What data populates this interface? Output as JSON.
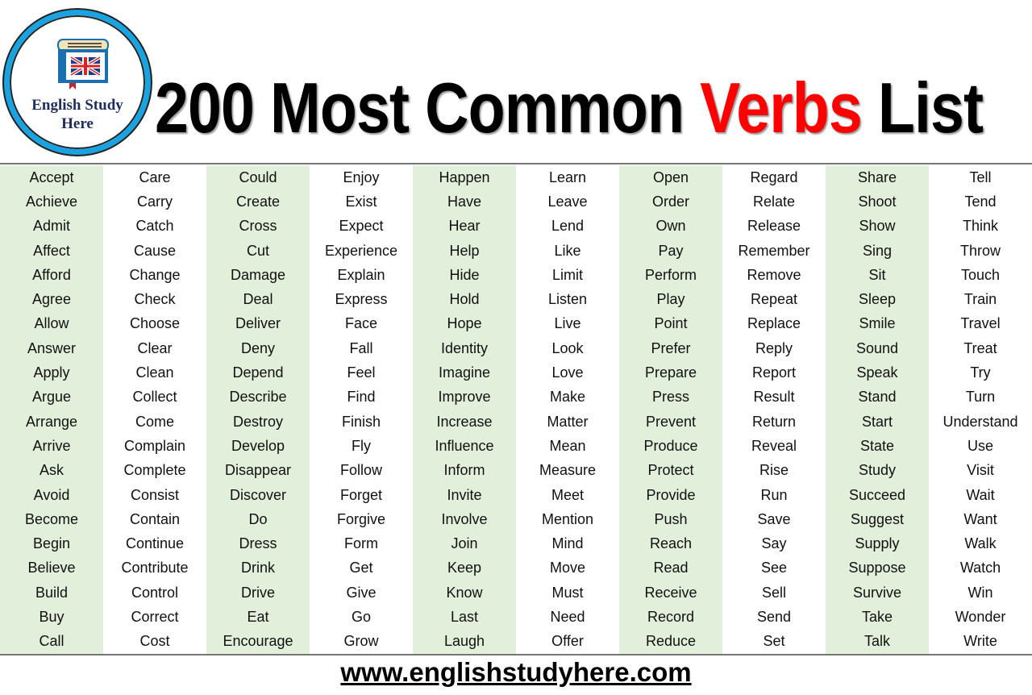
{
  "logo": {
    "text_line1": "English Study",
    "text_line2": "Here"
  },
  "title": {
    "part1": "200 Most Common ",
    "highlight": "Verbs",
    "part2": " List",
    "highlight_color": "#ff0000"
  },
  "colors": {
    "stripe": "#e2efda",
    "logo_ring": "#1aa3e0"
  },
  "columns": [
    [
      "Accept",
      "Achieve",
      "Admit",
      "Affect",
      "Afford",
      "Agree",
      "Allow",
      "Answer",
      "Apply",
      "Argue",
      "Arrange",
      "Arrive",
      "Ask",
      "Avoid",
      "Become",
      "Begin",
      "Believe",
      "Build",
      "Buy",
      "Call"
    ],
    [
      "Care",
      "Carry",
      "Catch",
      "Cause",
      "Change",
      "Check",
      "Choose",
      "Clear",
      "Clean",
      "Collect",
      "Come",
      "Complain",
      "Complete",
      "Consist",
      "Contain",
      "Continue",
      "Contribute",
      "Control",
      "Correct",
      "Cost"
    ],
    [
      "Could",
      "Create",
      "Cross",
      "Cut",
      "Damage",
      "Deal",
      "Deliver",
      "Deny",
      "Depend",
      "Describe",
      "Destroy",
      "Develop",
      "Disappear",
      "Discover",
      "Do",
      "Dress",
      "Drink",
      "Drive",
      "Eat",
      "Encourage"
    ],
    [
      "Enjoy",
      "Exist",
      "Expect",
      "Experience",
      "Explain",
      "Express",
      "Face",
      "Fall",
      "Feel",
      "Find",
      "Finish",
      "Fly",
      "Follow",
      "Forget",
      "Forgive",
      "Form",
      "Get",
      "Give",
      "Go",
      "Grow"
    ],
    [
      "Happen",
      "Have",
      "Hear",
      "Help",
      "Hide",
      "Hold",
      "Hope",
      "Identity",
      "Imagine",
      "Improve",
      "Increase",
      "Influence",
      "Inform",
      "Invite",
      "Involve",
      "Join",
      "Keep",
      "Know",
      "Last",
      "Laugh"
    ],
    [
      "Learn",
      "Leave",
      "Lend",
      "Like",
      "Limit",
      "Listen",
      "Live",
      "Look",
      "Love",
      "Make",
      "Matter",
      "Mean",
      "Measure",
      "Meet",
      "Mention",
      "Mind",
      "Move",
      "Must",
      "Need",
      "Offer"
    ],
    [
      "Open",
      "Order",
      "Own",
      "Pay",
      "Perform",
      "Play",
      "Point",
      "Prefer",
      "Prepare",
      "Press",
      "Prevent",
      "Produce",
      "Protect",
      "Provide",
      "Push",
      "Reach",
      "Read",
      "Receive",
      "Record",
      "Reduce"
    ],
    [
      "Regard",
      "Relate",
      "Release",
      "Remember",
      "Remove",
      "Repeat",
      "Replace",
      "Reply",
      "Report",
      "Result",
      "Return",
      "Reveal",
      "Rise",
      "Run",
      "Save",
      "Say",
      "See",
      "Sell",
      "Send",
      "Set"
    ],
    [
      "Share",
      "Shoot",
      "Show",
      "Sing",
      "Sit",
      "Sleep",
      "Smile",
      "Sound",
      "Speak",
      "Stand",
      "Start",
      "State",
      "Study",
      "Succeed",
      "Suggest",
      "Supply",
      "Suppose",
      "Survive",
      "Take",
      "Talk"
    ],
    [
      "Tell",
      "Tend",
      "Think",
      "Throw",
      "Touch",
      "Train",
      "Travel",
      "Treat",
      "Try",
      "Turn",
      "Understand",
      "Use",
      "Visit",
      "Wait",
      "Want",
      "Walk",
      "Watch",
      "Win",
      "Wonder",
      "Write"
    ]
  ],
  "footer": {
    "url": "www.englishstudyhere.com"
  }
}
